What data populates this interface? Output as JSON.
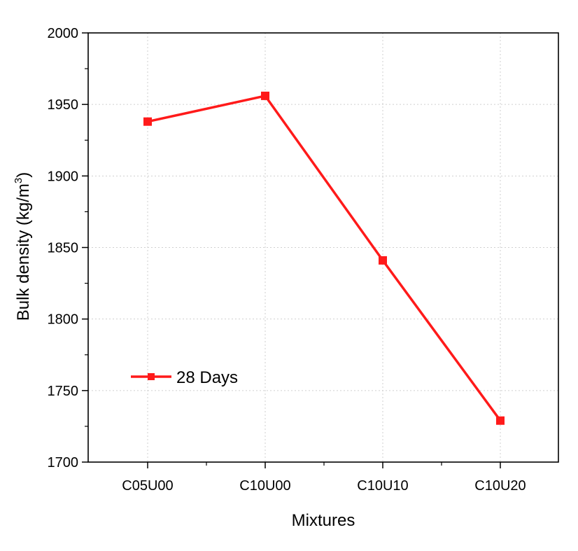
{
  "chart_data": {
    "type": "line",
    "categories": [
      "C05U00",
      "C10U00",
      "C10U10",
      "C10U20"
    ],
    "series": [
      {
        "name": "28 Days",
        "values": [
          1938,
          1956,
          1841,
          1729
        ],
        "color": "#ff1a1a",
        "marker": "square"
      }
    ],
    "xlabel": "Mixtures",
    "ylabel": "Bulk density (kg/m",
    "ylabel_superscript": "3",
    "ylabel_suffix": ")",
    "ylim": [
      1700,
      2000
    ],
    "yticks": [
      "1700",
      "1750",
      "1800",
      "1850",
      "1900",
      "1950",
      "2000"
    ],
    "grid": true,
    "legend_position": "lower-left"
  }
}
